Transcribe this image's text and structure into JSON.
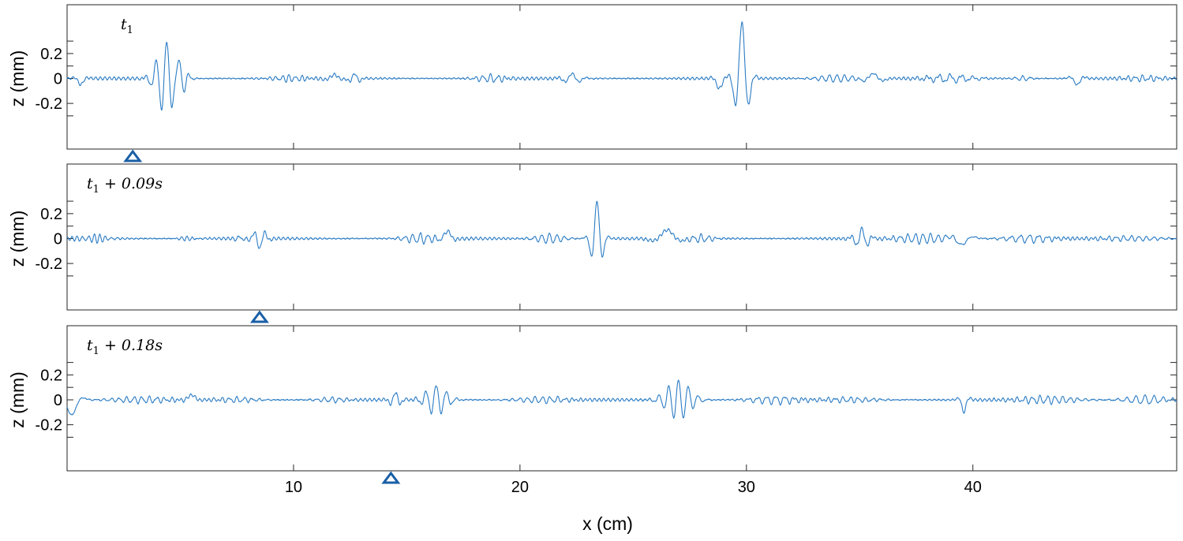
{
  "chart_data": {
    "type": "line",
    "xlabel": "x (cm)",
    "ylabel": "z (mm)",
    "xlim": [
      0,
      49
    ],
    "ylim": [
      -0.4,
      0.4
    ],
    "xticks": [
      10,
      20,
      30,
      40
    ],
    "yticks": [
      -0.2,
      0,
      0.2
    ],
    "xtick_labels": [
      "10",
      "20",
      "30",
      "40"
    ],
    "ytick_labels": [
      "-0.2",
      "0",
      "0.2"
    ],
    "grid": false,
    "line_color": "#2b7cc4",
    "marker_color": "#1a5fa6",
    "panels": [
      {
        "label_main": "t",
        "label_sub": "1",
        "label_rest": "",
        "marker_x": 2.9,
        "packets": [
          {
            "x": 0.6,
            "amp": -0.05,
            "width": 0.25,
            "freq": 1.2
          },
          {
            "x": 4.4,
            "amp": 0.3,
            "width": 0.55,
            "freq": 2.1
          },
          {
            "x": 5.0,
            "amp": 0.12,
            "width": 0.3,
            "freq": 2.5
          },
          {
            "x": 9.8,
            "amp": 0.025,
            "width": 0.8,
            "freq": 3.5
          },
          {
            "x": 11.8,
            "amp": 0.03,
            "width": 0.4,
            "freq": 1.0
          },
          {
            "x": 12.7,
            "amp": 0.04,
            "width": 0.3,
            "freq": 2.0
          },
          {
            "x": 18.7,
            "amp": 0.03,
            "width": 0.7,
            "freq": 3.0
          },
          {
            "x": 22.3,
            "amp": 0.04,
            "width": 0.5,
            "freq": 1.5
          },
          {
            "x": 29.8,
            "amp": 0.45,
            "width": 0.35,
            "freq": 1.5
          },
          {
            "x": 28.8,
            "amp": -0.08,
            "width": 0.25,
            "freq": 1.0
          },
          {
            "x": 34.0,
            "amp": 0.03,
            "width": 1.0,
            "freq": 3.0
          },
          {
            "x": 35.6,
            "amp": 0.04,
            "width": 0.5,
            "freq": 1.0
          },
          {
            "x": 39.0,
            "amp": 0.03,
            "width": 1.2,
            "freq": 2.0
          },
          {
            "x": 42.2,
            "amp": 0.02,
            "width": 0.4,
            "freq": 3.0
          },
          {
            "x": 44.6,
            "amp": -0.05,
            "width": 0.3,
            "freq": 1.2
          },
          {
            "x": 47.5,
            "amp": 0.02,
            "width": 1.0,
            "freq": 3.0
          }
        ]
      },
      {
        "label_main": "t",
        "label_sub": "1",
        "label_rest": " + 0.09s",
        "marker_x": 8.5,
        "packets": [
          {
            "x": 1.2,
            "amp": 0.03,
            "width": 0.8,
            "freq": 4.0
          },
          {
            "x": 5.3,
            "amp": 0.015,
            "width": 0.5,
            "freq": 4.0
          },
          {
            "x": 7.6,
            "amp": 0.025,
            "width": 0.2,
            "freq": 3.0
          },
          {
            "x": 8.5,
            "amp": -0.08,
            "width": 0.35,
            "freq": 2.0
          },
          {
            "x": 15.6,
            "amp": 0.04,
            "width": 0.8,
            "freq": 3.0
          },
          {
            "x": 16.8,
            "amp": 0.06,
            "width": 0.3,
            "freq": 1.0
          },
          {
            "x": 21.3,
            "amp": 0.04,
            "width": 0.7,
            "freq": 3.0
          },
          {
            "x": 23.4,
            "amp": 0.3,
            "width": 0.3,
            "freq": 1.8
          },
          {
            "x": 26.5,
            "amp": 0.07,
            "width": 0.6,
            "freq": 0.6
          },
          {
            "x": 28.0,
            "amp": 0.03,
            "width": 0.6,
            "freq": 3.0
          },
          {
            "x": 35.1,
            "amp": 0.08,
            "width": 0.4,
            "freq": 2.0
          },
          {
            "x": 37.8,
            "amp": 0.04,
            "width": 1.3,
            "freq": 3.0
          },
          {
            "x": 39.5,
            "amp": -0.05,
            "width": 0.5,
            "freq": 0.8
          },
          {
            "x": 42.5,
            "amp": 0.03,
            "width": 1.2,
            "freq": 2.5
          },
          {
            "x": 47.0,
            "amp": 0.02,
            "width": 1.5,
            "freq": 3.0
          }
        ]
      },
      {
        "label_main": "t",
        "label_sub": "1",
        "label_rest": " + 0.18s",
        "marker_x": 14.3,
        "packets": [
          {
            "x": 0.2,
            "amp": -0.12,
            "width": 0.4,
            "freq": 0.7
          },
          {
            "x": 3.3,
            "amp": 0.025,
            "width": 1.5,
            "freq": 3.0
          },
          {
            "x": 5.5,
            "amp": 0.04,
            "width": 0.3,
            "freq": 0.8
          },
          {
            "x": 7.5,
            "amp": 0.02,
            "width": 1.0,
            "freq": 3.0
          },
          {
            "x": 11.7,
            "amp": 0.02,
            "width": 0.8,
            "freq": 3.0
          },
          {
            "x": 14.5,
            "amp": 0.06,
            "width": 0.3,
            "freq": 2.0
          },
          {
            "x": 16.3,
            "amp": 0.12,
            "width": 0.6,
            "freq": 2.2
          },
          {
            "x": 21.0,
            "amp": 0.025,
            "width": 1.3,
            "freq": 3.0
          },
          {
            "x": 27.0,
            "amp": 0.16,
            "width": 0.7,
            "freq": 2.3
          },
          {
            "x": 31.3,
            "amp": 0.03,
            "width": 1.2,
            "freq": 2.5
          },
          {
            "x": 34.6,
            "amp": 0.02,
            "width": 1.3,
            "freq": 3.0
          },
          {
            "x": 39.6,
            "amp": -0.1,
            "width": 0.2,
            "freq": 1.5
          },
          {
            "x": 43.3,
            "amp": 0.03,
            "width": 1.5,
            "freq": 3.0
          },
          {
            "x": 47.6,
            "amp": 0.035,
            "width": 1.0,
            "freq": 2.5
          }
        ]
      }
    ]
  }
}
